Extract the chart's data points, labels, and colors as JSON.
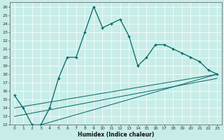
{
  "xlabel": "Humidex (Indice chaleur)",
  "bg_color": "#c8ede8",
  "line_color": "#006666",
  "grid_color": "#ffffff",
  "xlim": [
    -0.5,
    23.5
  ],
  "ylim": [
    12,
    26.5
  ],
  "x_ticks": [
    0,
    1,
    2,
    3,
    4,
    5,
    6,
    7,
    8,
    9,
    10,
    11,
    12,
    13,
    14,
    15,
    16,
    17,
    18,
    19,
    20,
    21,
    22,
    23
  ],
  "y_ticks": [
    12,
    13,
    14,
    15,
    16,
    17,
    18,
    19,
    20,
    21,
    22,
    23,
    24,
    25,
    26
  ],
  "main_line_x": [
    0,
    1,
    2,
    3,
    4,
    5,
    6,
    7,
    8,
    9,
    10,
    11,
    12,
    13,
    14,
    15,
    16,
    17,
    18,
    19,
    20,
    21,
    22,
    23
  ],
  "main_line_y": [
    15.5,
    14.0,
    12.0,
    12.0,
    14.0,
    17.5,
    20.0,
    20.0,
    23.0,
    26.0,
    23.5,
    24.0,
    24.5,
    22.5,
    19.0,
    20.0,
    21.5,
    21.5,
    21.0,
    20.5,
    20.0,
    19.5,
    18.5,
    18.0
  ],
  "diag_line1_x": [
    0,
    23
  ],
  "diag_line1_y": [
    14.0,
    18.0
  ],
  "diag_line2_x": [
    0,
    23
  ],
  "diag_line2_y": [
    13.0,
    17.5
  ],
  "diag_line3_x": [
    3,
    23
  ],
  "diag_line3_y": [
    12.0,
    18.0
  ]
}
